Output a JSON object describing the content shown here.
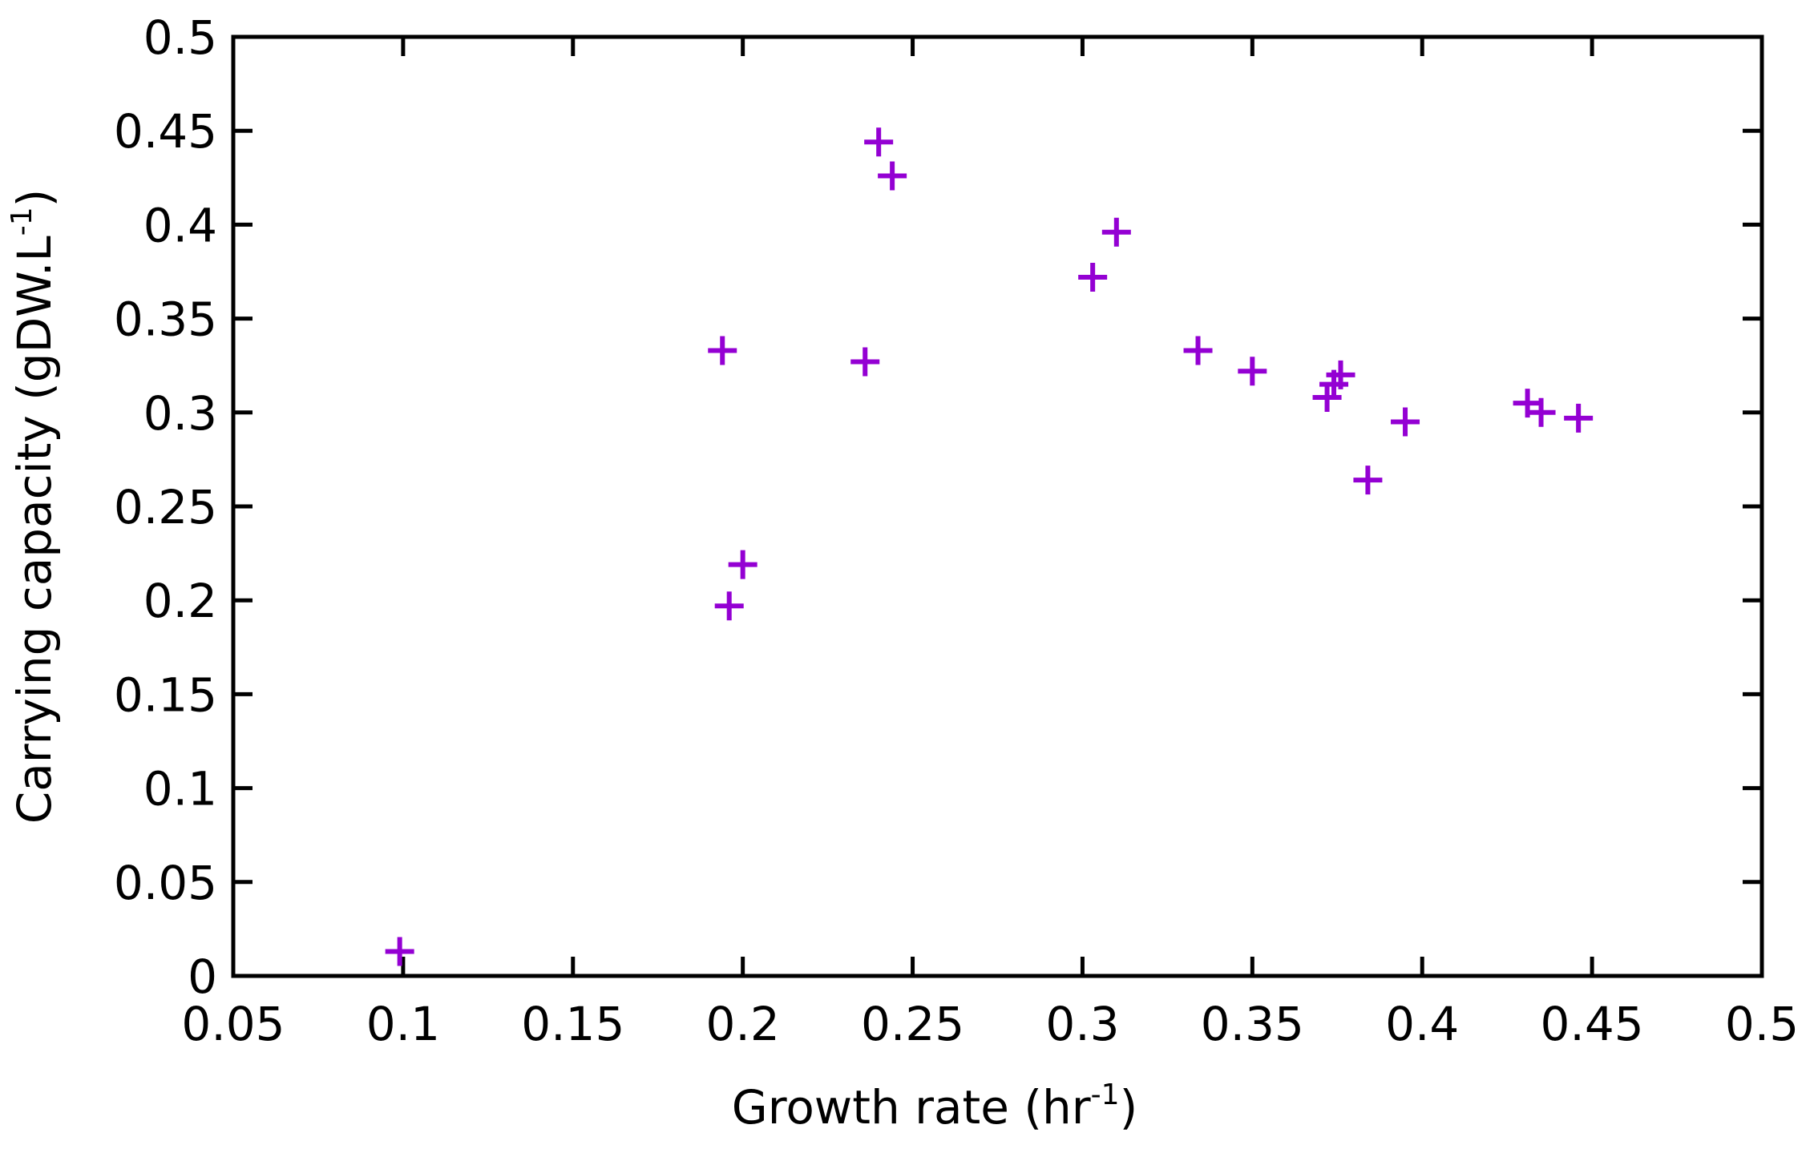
{
  "chart_data": {
    "type": "scatter",
    "title": "",
    "xlabel": {
      "base": "Growth rate (hr",
      "sup": "-1",
      "tail": ")"
    },
    "ylabel": {
      "base": "Carrying capacity (gDW.L",
      "sup": "-1",
      "tail": ")"
    },
    "xlim": [
      0.05,
      0.5
    ],
    "ylim": [
      0,
      0.5
    ],
    "xticks": [
      "0.05",
      "0.1",
      "0.15",
      "0.2",
      "0.25",
      "0.3",
      "0.35",
      "0.4",
      "0.45",
      "0.5"
    ],
    "yticks": [
      "0",
      "0.05",
      "0.1",
      "0.15",
      "0.2",
      "0.25",
      "0.3",
      "0.35",
      "0.4",
      "0.45",
      "0.5"
    ],
    "grid": false,
    "marker": "plus",
    "color": "#9400D3",
    "points": [
      {
        "x": 0.099,
        "y": 0.013
      },
      {
        "x": 0.194,
        "y": 0.333
      },
      {
        "x": 0.196,
        "y": 0.197
      },
      {
        "x": 0.2,
        "y": 0.219
      },
      {
        "x": 0.236,
        "y": 0.327
      },
      {
        "x": 0.24,
        "y": 0.444
      },
      {
        "x": 0.244,
        "y": 0.426
      },
      {
        "x": 0.303,
        "y": 0.372
      },
      {
        "x": 0.31,
        "y": 0.396
      },
      {
        "x": 0.334,
        "y": 0.333
      },
      {
        "x": 0.35,
        "y": 0.322
      },
      {
        "x": 0.372,
        "y": 0.308
      },
      {
        "x": 0.374,
        "y": 0.315
      },
      {
        "x": 0.376,
        "y": 0.32
      },
      {
        "x": 0.384,
        "y": 0.264
      },
      {
        "x": 0.395,
        "y": 0.295
      },
      {
        "x": 0.431,
        "y": 0.305
      },
      {
        "x": 0.435,
        "y": 0.3
      },
      {
        "x": 0.446,
        "y": 0.297
      }
    ]
  }
}
